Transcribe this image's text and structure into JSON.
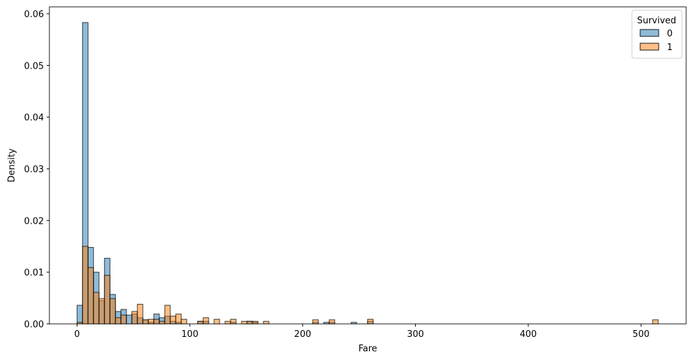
{
  "chart_data": {
    "type": "bar",
    "subtype": "histogram",
    "xlabel": "Fare",
    "ylabel": "Density",
    "xlim": [
      -25.6,
      538
    ],
    "ylim": [
      0,
      0.0612
    ],
    "xticks": [
      "0",
      "100",
      "200",
      "300",
      "400",
      "500"
    ],
    "yticks": [
      "0.00",
      "0.01",
      "0.02",
      "0.03",
      "0.04",
      "0.05",
      "0.06"
    ],
    "grid": false,
    "bin_width": 4.86,
    "legend": {
      "title": "Survived",
      "placement": "top-right"
    },
    "series": [
      {
        "name": "0",
        "color": "#1f77b4",
        "bins": [
          [
            0,
            0.0036
          ],
          [
            4.86,
            0.0583
          ],
          [
            9.72,
            0.0148
          ],
          [
            14.58,
            0.01
          ],
          [
            19.44,
            0.0045
          ],
          [
            24.3,
            0.0127
          ],
          [
            29.16,
            0.0057
          ],
          [
            34.02,
            0.0024
          ],
          [
            38.88,
            0.0028
          ],
          [
            43.74,
            0.0017
          ],
          [
            48.6,
            0.0019
          ],
          [
            53.46,
            0.0012
          ],
          [
            58.32,
            0.0008
          ],
          [
            63.18,
            0.0003
          ],
          [
            68.04,
            0.0019
          ],
          [
            72.9,
            0.0012
          ],
          [
            77.76,
            0.0015
          ],
          [
            82.62,
            0.0005
          ],
          [
            87.48,
            0.0003
          ],
          [
            106.92,
            0.0005
          ],
          [
            111.78,
            0.0005
          ],
          [
            136.08,
            0.0003
          ],
          [
            150.66,
            0.0005
          ],
          [
            155.52,
            0.0003
          ],
          [
            208.98,
            0.0003
          ],
          [
            218.7,
            0.0003
          ],
          [
            223.56,
            0.0003
          ],
          [
            243,
            0.0003
          ],
          [
            257.58,
            0.0005
          ]
        ]
      },
      {
        "name": "1",
        "color": "#ff7f0e",
        "bins": [
          [
            0,
            0.0003
          ],
          [
            4.86,
            0.015
          ],
          [
            9.72,
            0.0109
          ],
          [
            14.58,
            0.0061
          ],
          [
            19.44,
            0.0049
          ],
          [
            24.3,
            0.0094
          ],
          [
            29.16,
            0.0049
          ],
          [
            34.02,
            0.0012
          ],
          [
            38.88,
            0.0017
          ],
          [
            48.6,
            0.0024
          ],
          [
            53.46,
            0.0038
          ],
          [
            58.32,
            0.0008
          ],
          [
            63.18,
            0.0009
          ],
          [
            68.04,
            0.0009
          ],
          [
            72.9,
            0.0005
          ],
          [
            77.76,
            0.0036
          ],
          [
            82.62,
            0.0015
          ],
          [
            87.48,
            0.0019
          ],
          [
            92.34,
            0.0009
          ],
          [
            106.92,
            0.0005
          ],
          [
            111.78,
            0.0012
          ],
          [
            121.5,
            0.0009
          ],
          [
            131.22,
            0.0005
          ],
          [
            136.08,
            0.0009
          ],
          [
            145.8,
            0.0005
          ],
          [
            150.66,
            0.0005
          ],
          [
            155.52,
            0.0005
          ],
          [
            165.24,
            0.0005
          ],
          [
            208.98,
            0.0008
          ],
          [
            223.56,
            0.0008
          ],
          [
            257.58,
            0.0009
          ],
          [
            510.3,
            0.0008
          ]
        ]
      }
    ]
  }
}
